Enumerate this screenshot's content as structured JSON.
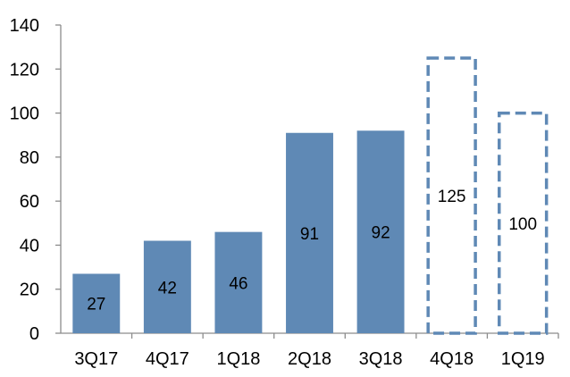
{
  "chart_data": {
    "type": "bar",
    "categories": [
      "3Q17",
      "4Q17",
      "1Q18",
      "2Q18",
      "3Q18",
      "4Q18",
      "1Q19"
    ],
    "values": [
      27,
      42,
      46,
      91,
      92,
      125,
      100
    ],
    "bar_styles": [
      "solid",
      "solid",
      "solid",
      "solid",
      "solid",
      "dashed",
      "dashed"
    ],
    "data_labels": [
      "27",
      "42",
      "46",
      "91",
      "92",
      "125",
      "100"
    ],
    "ylim": [
      0,
      140
    ],
    "yticks": [
      0,
      20,
      40,
      60,
      80,
      100,
      120,
      140
    ],
    "title": "",
    "xlabel": "",
    "ylabel": "",
    "grid": false,
    "legend": "none",
    "colors": {
      "bar_fill": "#5f89b5",
      "dashed_outline": "#5f89b5",
      "axis": "#8c8c8c",
      "text": "#000000"
    }
  }
}
